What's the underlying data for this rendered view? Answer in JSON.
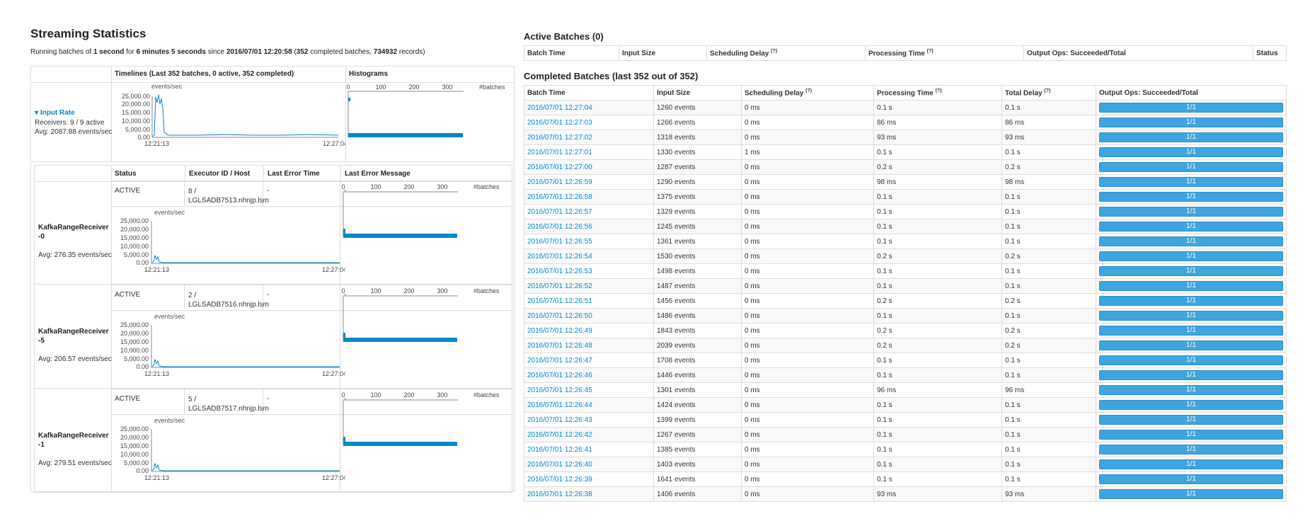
{
  "title": "Streaming Statistics",
  "summary": {
    "p1": "Running batches of ",
    "interval": "1 second",
    "p2": " for ",
    "duration": "6 minutes 5 seconds",
    "p3": " since ",
    "since": "2016/07/01 12:20:58",
    "p4": " (",
    "completed": "352",
    "p5": " completed batches, ",
    "records": "734932",
    "p6": " records)"
  },
  "left_headers": {
    "timelines": "Timelines (Last 352 batches, 0 active, 352 completed)",
    "histograms": "Histograms"
  },
  "input_rate": {
    "label": "Input Rate",
    "receivers": "Receivers: 9 / 9 active",
    "avg": "Avg: 2087.88 events/sec",
    "unit": "events/sec",
    "y_ticks": [
      "25,000.00",
      "20,000.00",
      "15,000.00",
      "10,000.00",
      "5,000.00",
      "0.00"
    ],
    "x_start": "12:21:13",
    "x_end": "12:27:04",
    "hist_ticks": [
      "0",
      "100",
      "200",
      "300"
    ],
    "hist_unit": "#batches"
  },
  "receiver_headers": [
    "Status",
    "Executor ID / Host",
    "Last Error Time",
    "Last Error Message"
  ],
  "receivers": [
    {
      "name": "KafkaRangeReceiver-0",
      "avg": "Avg: 276.35 events/sec",
      "status": "ACTIVE",
      "executor": "8 /",
      "host": "LGLSADB7513.nhnjp.lsm",
      "error_time": "-",
      "error_msg": "-",
      "unit": "events/sec",
      "y_ticks": [
        "25,000.00",
        "20,000.00",
        "15,000.00",
        "10,000.00",
        "5,000.00",
        "0.00"
      ],
      "x_start": "12:21:13",
      "x_end": "12:27:04",
      "hist_ticks": [
        "0",
        "100",
        "200",
        "300"
      ],
      "hist_unit": "#batches"
    },
    {
      "name": "KafkaRangeReceiver-5",
      "avg": "Avg: 206.57 events/sec",
      "status": "ACTIVE",
      "executor": "2 /",
      "host": "LGLSADB7516.nhnjp.lsm",
      "error_time": "-",
      "error_msg": "-",
      "unit": "events/sec",
      "y_ticks": [
        "25,000.00",
        "20,000.00",
        "15,000.00",
        "10,000.00",
        "5,000.00",
        "0.00"
      ],
      "x_start": "12:21:13",
      "x_end": "12:27:04",
      "hist_ticks": [
        "0",
        "100",
        "200",
        "300"
      ],
      "hist_unit": "#batches"
    },
    {
      "name": "KafkaRangeReceiver-1",
      "avg": "Avg: 279.51 events/sec",
      "status": "ACTIVE",
      "executor": "5 /",
      "host": "LGLSADB7517.nhnjp.lsm",
      "error_time": "-",
      "error_msg": "-",
      "unit": "events/sec",
      "y_ticks": [
        "25,000.00",
        "20,000.00",
        "15,000.00",
        "10,000.00",
        "5,000.00",
        "0.00"
      ],
      "x_start": "12:21:13",
      "x_end": "12:27:04",
      "hist_ticks": [
        "0",
        "100",
        "200",
        "300"
      ],
      "hist_unit": "#batches"
    }
  ],
  "active_batches": {
    "title": "Active Batches (0)",
    "headers": [
      "Batch Time",
      "Input Size",
      "Scheduling Delay",
      "Processing Time",
      "Output Ops: Succeeded/Total",
      "Status"
    ]
  },
  "completed_batches": {
    "title": "Completed Batches (last 352 out of 352)",
    "headers": [
      "Batch Time",
      "Input Size",
      "Scheduling Delay",
      "Processing Time",
      "Total Delay",
      "Output Ops: Succeeded/Total"
    ],
    "help_mark": "(?)",
    "rows": [
      [
        "2016/07/01 12:27:04",
        "1260 events",
        "0 ms",
        "0.1 s",
        "0.1 s",
        "1/1"
      ],
      [
        "2016/07/01 12:27:03",
        "1266 events",
        "0 ms",
        "86 ms",
        "86 ms",
        "1/1"
      ],
      [
        "2016/07/01 12:27:02",
        "1318 events",
        "0 ms",
        "93 ms",
        "93 ms",
        "1/1"
      ],
      [
        "2016/07/01 12:27:01",
        "1330 events",
        "1 ms",
        "0.1 s",
        "0.1 s",
        "1/1"
      ],
      [
        "2016/07/01 12:27:00",
        "1287 events",
        "0 ms",
        "0.2 s",
        "0.2 s",
        "1/1"
      ],
      [
        "2016/07/01 12:26:59",
        "1290 events",
        "0 ms",
        "98 ms",
        "98 ms",
        "1/1"
      ],
      [
        "2016/07/01 12:26:58",
        "1375 events",
        "0 ms",
        "0.1 s",
        "0.1 s",
        "1/1"
      ],
      [
        "2016/07/01 12:26:57",
        "1329 events",
        "0 ms",
        "0.1 s",
        "0.1 s",
        "1/1"
      ],
      [
        "2016/07/01 12:26:56",
        "1245 events",
        "0 ms",
        "0.1 s",
        "0.1 s",
        "1/1"
      ],
      [
        "2016/07/01 12:26:55",
        "1361 events",
        "0 ms",
        "0.1 s",
        "0.1 s",
        "1/1"
      ],
      [
        "2016/07/01 12:26:54",
        "1530 events",
        "0 ms",
        "0.2 s",
        "0.2 s",
        "1/1"
      ],
      [
        "2016/07/01 12:26:53",
        "1498 events",
        "0 ms",
        "0.1 s",
        "0.1 s",
        "1/1"
      ],
      [
        "2016/07/01 12:26:52",
        "1487 events",
        "0 ms",
        "0.1 s",
        "0.1 s",
        "1/1"
      ],
      [
        "2016/07/01 12:26:51",
        "1456 events",
        "0 ms",
        "0.2 s",
        "0.2 s",
        "1/1"
      ],
      [
        "2016/07/01 12:26:50",
        "1486 events",
        "0 ms",
        "0.1 s",
        "0.1 s",
        "1/1"
      ],
      [
        "2016/07/01 12:26:49",
        "1843 events",
        "0 ms",
        "0.2 s",
        "0.2 s",
        "1/1"
      ],
      [
        "2016/07/01 12:26:48",
        "2039 events",
        "0 ms",
        "0.2 s",
        "0.2 s",
        "1/1"
      ],
      [
        "2016/07/01 12:26:47",
        "1708 events",
        "0 ms",
        "0.1 s",
        "0.1 s",
        "1/1"
      ],
      [
        "2016/07/01 12:26:46",
        "1446 events",
        "0 ms",
        "0.1 s",
        "0.1 s",
        "1/1"
      ],
      [
        "2016/07/01 12:26:45",
        "1301 events",
        "0 ms",
        "96 ms",
        "96 ms",
        "1/1"
      ],
      [
        "2016/07/01 12:26:44",
        "1424 events",
        "0 ms",
        "0.1 s",
        "0.1 s",
        "1/1"
      ],
      [
        "2016/07/01 12:26:43",
        "1399 events",
        "0 ms",
        "0.1 s",
        "0.1 s",
        "1/1"
      ],
      [
        "2016/07/01 12:26:42",
        "1267 events",
        "0 ms",
        "0.1 s",
        "0.1 s",
        "1/1"
      ],
      [
        "2016/07/01 12:26:41",
        "1385 events",
        "0 ms",
        "0.1 s",
        "0.1 s",
        "1/1"
      ],
      [
        "2016/07/01 12:26:40",
        "1403 events",
        "0 ms",
        "0.1 s",
        "0.1 s",
        "1/1"
      ],
      [
        "2016/07/01 12:26:39",
        "1641 events",
        "0 ms",
        "0.1 s",
        "0.1 s",
        "1/1"
      ],
      [
        "2016/07/01 12:26:38",
        "1406 events",
        "0 ms",
        "93 ms",
        "93 ms",
        "1/1"
      ]
    ]
  },
  "colors": {
    "link": "#0088cc",
    "bar": "#3ea5e0",
    "chart_line": "#0088cc",
    "border": "#dddddd"
  }
}
